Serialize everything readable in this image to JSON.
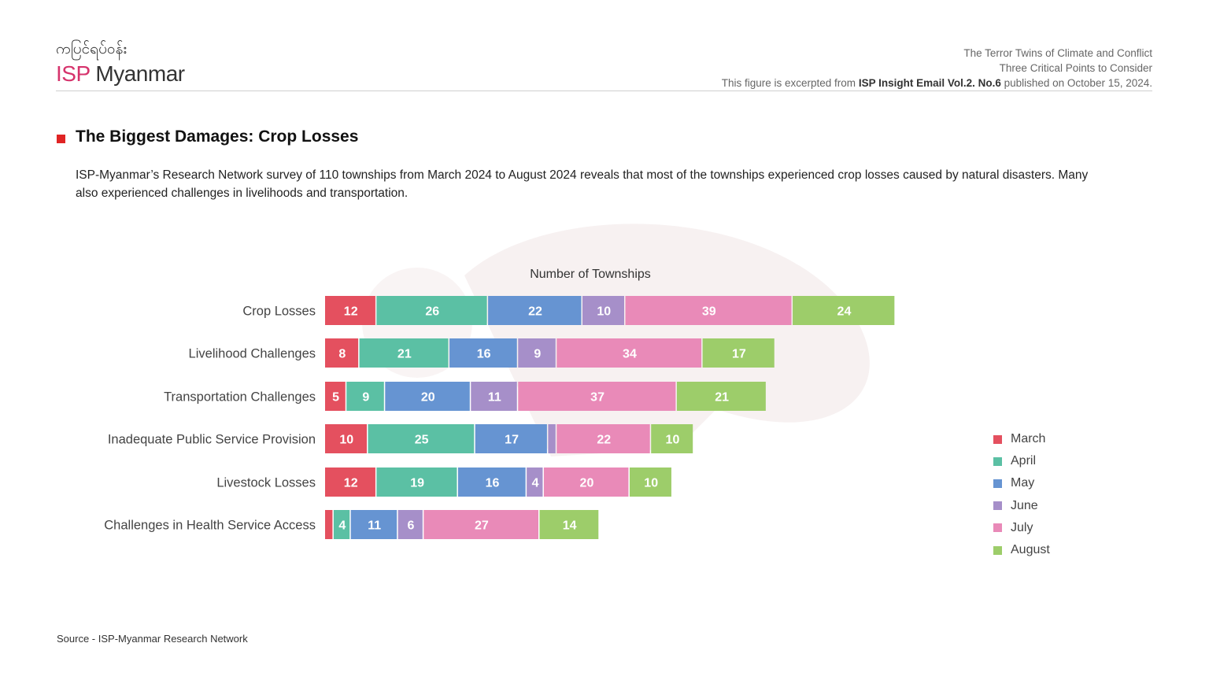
{
  "header": {
    "logo_myanmar": "ကပြင်ရပ်ဝန်း",
    "logo_isp": "ISP",
    "logo_name": "Myanmar",
    "line1": "The Terror Twins of Climate and Conflict",
    "line2": "Three Critical Points to Consider",
    "line3_prefix": "This figure is excerpted from ",
    "line3_bold": "ISP Insight Email Vol.2. No.6",
    "line3_suffix": " published on October 15, 2024."
  },
  "section": {
    "title": "The Biggest Damages: Crop Losses",
    "description": "ISP-Myanmar’s Research Network survey of 110 townships from March 2024 to August 2024 reveals that most of the townships experienced crop losses caused by natural disasters. Many also experienced challenges in livelihoods and transportation."
  },
  "footer": {
    "source": "Source  -  ISP-Myanmar Research Network"
  },
  "chart_data": {
    "type": "bar",
    "orientation": "horizontal",
    "stacked": true,
    "title": "Number of Townships",
    "categories": [
      "Crop Losses",
      "Livelihood Challenges",
      "Transportation Challenges",
      "Inadequate Public Service Provision",
      "Livestock Losses",
      "Challenges in Health Service Access"
    ],
    "series": [
      {
        "name": "March",
        "color": "#e4505f",
        "values": [
          12,
          8,
          5,
          10,
          12,
          2
        ]
      },
      {
        "name": "April",
        "color": "#5bc0a4",
        "values": [
          26,
          21,
          9,
          25,
          19,
          4
        ]
      },
      {
        "name": "May",
        "color": "#6694d2",
        "values": [
          22,
          16,
          20,
          17,
          16,
          11
        ]
      },
      {
        "name": "June",
        "color": "#a68fc9",
        "values": [
          10,
          9,
          11,
          2,
          4,
          6
        ]
      },
      {
        "name": "July",
        "color": "#e98ab8",
        "values": [
          39,
          34,
          37,
          22,
          20,
          27
        ]
      },
      {
        "name": "August",
        "color": "#9dcd6a",
        "values": [
          24,
          17,
          21,
          10,
          10,
          14
        ]
      }
    ],
    "show_label_min": 3,
    "legend": "right"
  }
}
